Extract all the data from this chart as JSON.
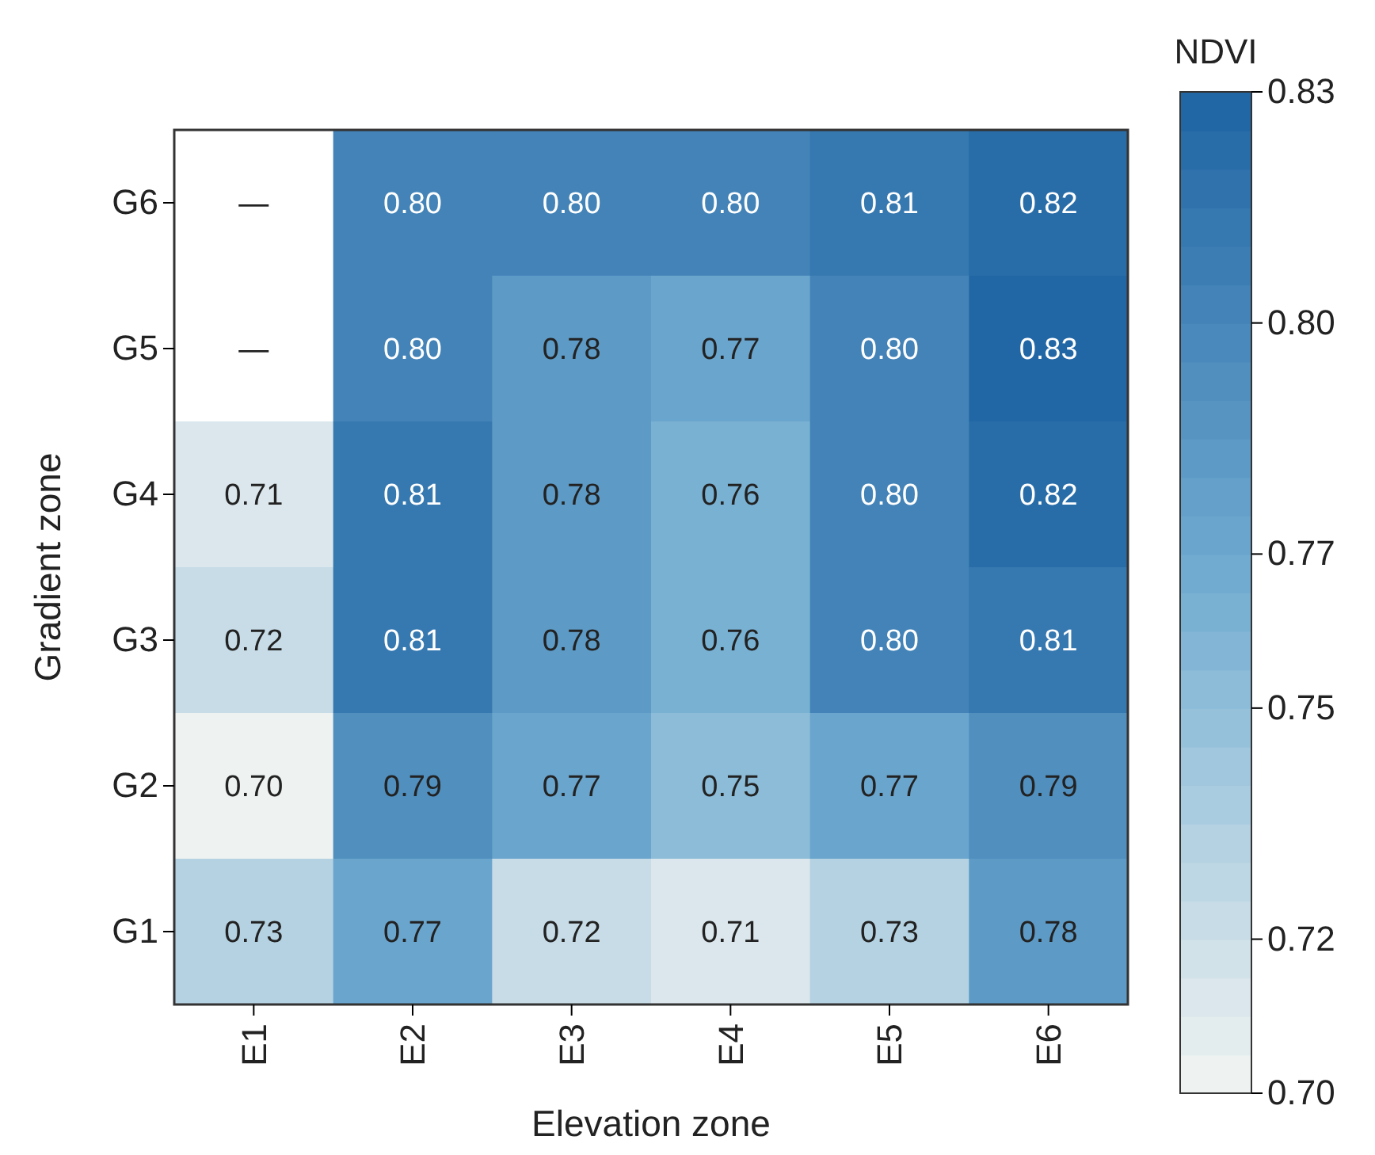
{
  "chart_data": {
    "type": "heatmap",
    "xlabel": "Elevation zone",
    "ylabel": "Gradient zone",
    "clabel": "NDVI",
    "categories": [
      "E1",
      "E2",
      "E3",
      "E4",
      "E5",
      "E6"
    ],
    "y_categories": [
      "G6",
      "G5",
      "G4",
      "G3",
      "G2",
      "G1"
    ],
    "cells": [
      [
        null,
        0.8,
        0.8,
        0.8,
        0.81,
        0.82
      ],
      [
        null,
        0.8,
        0.78,
        0.77,
        0.8,
        0.83
      ],
      [
        0.71,
        0.81,
        0.78,
        0.76,
        0.8,
        0.82
      ],
      [
        0.72,
        0.81,
        0.78,
        0.76,
        0.8,
        0.81
      ],
      [
        0.7,
        0.79,
        0.77,
        0.75,
        0.77,
        0.79
      ],
      [
        0.73,
        0.77,
        0.72,
        0.71,
        0.73,
        0.78
      ]
    ],
    "cell_labels": [
      [
        "—",
        "0.80",
        "0.80",
        "0.80",
        "0.81",
        "0.82"
      ],
      [
        "—",
        "0.80",
        "0.78",
        "0.77",
        "0.80",
        "0.83"
      ],
      [
        "0.71",
        "0.81",
        "0.78",
        "0.76",
        "0.80",
        "0.82"
      ],
      [
        "0.72",
        "0.81",
        "0.78",
        "0.76",
        "0.80",
        "0.81"
      ],
      [
        "0.70",
        "0.79",
        "0.77",
        "0.75",
        "0.77",
        "0.79"
      ],
      [
        "0.73",
        "0.77",
        "0.72",
        "0.71",
        "0.73",
        "0.78"
      ]
    ],
    "clim": [
      0.7,
      0.83
    ],
    "cticks": [
      {
        "value": 0.7,
        "label": "0.70"
      },
      {
        "value": 0.72,
        "label": "0.72"
      },
      {
        "value": 0.75,
        "label": "0.75"
      },
      {
        "value": 0.77,
        "label": "0.77"
      },
      {
        "value": 0.8,
        "label": "0.80"
      },
      {
        "value": 0.83,
        "label": "0.83"
      }
    ]
  }
}
